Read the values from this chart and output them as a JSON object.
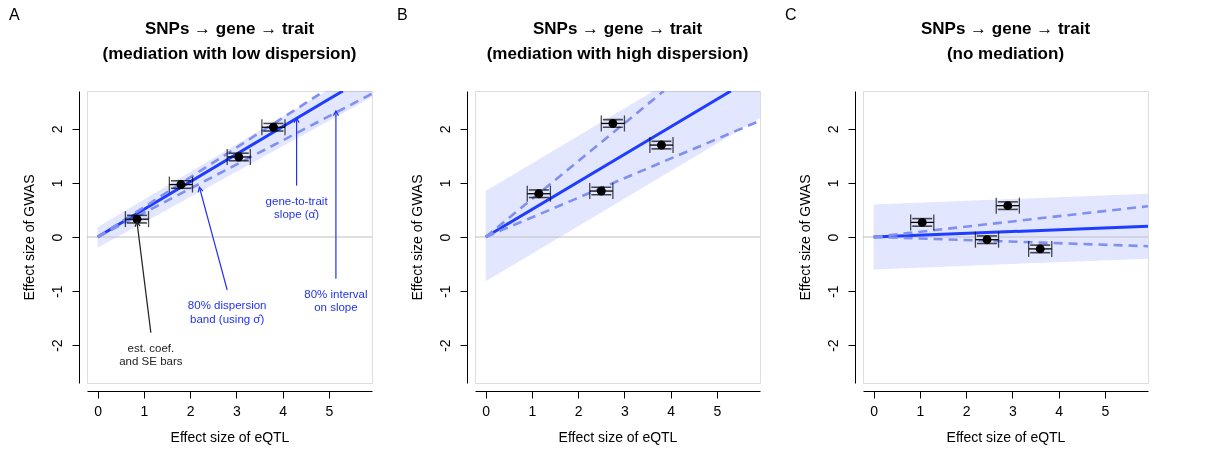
{
  "chart_data": [
    {
      "type": "scatter",
      "title": "SNPs → gene → trait\n(mediation with low dispersion)",
      "xlabel": "Effect size of eQTL",
      "ylabel": "Effect size of GWAS",
      "xlim": [
        -0.23,
        5.93
      ],
      "ylim": [
        -2.7,
        2.7
      ],
      "xticks": [
        0,
        1,
        2,
        3,
        4,
        5
      ],
      "yticks": [
        -2,
        -1,
        0,
        1,
        2
      ],
      "grid": false,
      "annotations": [
        "A",
        {
          "text": "est. coef.\nand SE bars",
          "x": 0.85,
          "y": 0.28
        },
        {
          "text": "80% dispersion\nband (using σ̂)",
          "x": 2.2,
          "y": 0.92
        },
        {
          "text": "gene-to-trait\nslope (α̂)",
          "x": 4.3,
          "y": 2.2
        },
        {
          "text": "80% interval\non slope",
          "x": 5.15,
          "y": 2.33
        }
      ],
      "ref_lines": [
        {
          "axis": "y",
          "value": 0,
          "color": "#c0c0c0"
        }
      ],
      "series": [
        {
          "type": "line",
          "color": "#1f3dff",
          "line_style": "solid",
          "x": [
            0,
            4.94,
            5.3,
            5.93
          ],
          "values": [
            0,
            2.52,
            2.7,
            null
          ],
          "lower": [
            -0.2,
            2.12,
            2.29,
            2.59
          ],
          "upper": [
            0.18,
            2.7,
            2.7,
            2.7
          ]
        },
        {
          "type": "line",
          "color": "#8090f0",
          "line_style": "dashed",
          "x": [
            0,
            4.9
          ],
          "values": [
            0,
            2.7
          ]
        },
        {
          "type": "line",
          "color": "#8090f0",
          "line_style": "dashed",
          "x": [
            0,
            5.93
          ],
          "values": [
            0,
            2.65
          ]
        },
        {
          "type": "scatter",
          "color": "#000000",
          "marker": "circle",
          "x": [
            0.85,
            1.8,
            3.05,
            3.8
          ],
          "values": [
            0.33,
            0.97,
            1.48,
            2.03
          ],
          "errors": [
            0.07,
            0.07,
            0.07,
            0.07
          ],
          "xerrors": [
            0.25,
            0.25,
            0.25,
            0.25
          ]
        }
      ]
    },
    {
      "type": "scatter",
      "title": "SNPs → gene → trait\n(mediation with high dispersion)",
      "xlabel": "Effect size of eQTL",
      "ylabel": "Effect size of GWAS",
      "xlim": [
        -0.23,
        5.93
      ],
      "ylim": [
        -2.7,
        2.7
      ],
      "xticks": [
        0,
        1,
        2,
        3,
        4,
        5
      ],
      "yticks": [
        -2,
        -1,
        0,
        1,
        2
      ],
      "grid": false,
      "annotations": [
        "B"
      ],
      "ref_lines": [
        {
          "axis": "y",
          "value": 0,
          "color": "#c0c0c0"
        }
      ],
      "series": [
        {
          "type": "line",
          "color": "#1f3dff",
          "line_style": "solid",
          "x": [
            0,
            3.63,
            5.3,
            5.93
          ],
          "values": [
            0,
            1.85,
            2.7,
            null
          ],
          "lower": [
            -0.82,
            1.03,
            1.88,
            2.2
          ],
          "upper": [
            0.85,
            2.7,
            2.7,
            2.7
          ]
        },
        {
          "type": "line",
          "color": "#8090f0",
          "line_style": "dashed",
          "x": [
            0,
            3.85
          ],
          "values": [
            0,
            2.7
          ]
        },
        {
          "type": "line",
          "color": "#8090f0",
          "line_style": "dashed",
          "x": [
            0,
            5.93
          ],
          "values": [
            0,
            2.15
          ]
        },
        {
          "type": "scatter",
          "color": "#000000",
          "marker": "circle",
          "x": [
            1.15,
            2.75,
            2.5,
            3.8
          ],
          "values": [
            0.8,
            2.1,
            0.85,
            1.7
          ],
          "errors": [
            0.07,
            0.07,
            0.07,
            0.07
          ],
          "xerrors": [
            0.25,
            0.25,
            0.25,
            0.25
          ]
        }
      ]
    },
    {
      "type": "scatter",
      "title": "SNPs → gene → trait\n(no mediation)",
      "xlabel": "Effect size of eQTL",
      "ylabel": "Effect size of GWAS",
      "xlim": [
        -0.23,
        5.93
      ],
      "ylim": [
        -2.7,
        2.7
      ],
      "xticks": [
        0,
        1,
        2,
        3,
        4,
        5
      ],
      "yticks": [
        -2,
        -1,
        0,
        1,
        2
      ],
      "grid": false,
      "annotations": [
        "C"
      ],
      "ref_lines": [
        {
          "axis": "y",
          "value": 0,
          "color": "#c0c0c0"
        }
      ],
      "series": [
        {
          "type": "line",
          "color": "#1f3dff",
          "line_style": "solid",
          "x": [
            0,
            5.93
          ],
          "values": [
            0,
            0.2
          ],
          "lower": [
            -0.6,
            -0.4
          ],
          "upper": [
            0.6,
            0.8
          ]
        },
        {
          "type": "line",
          "color": "#8090f0",
          "line_style": "dashed",
          "x": [
            0,
            5.93
          ],
          "values": [
            0,
            0.57
          ]
        },
        {
          "type": "line",
          "color": "#8090f0",
          "line_style": "dashed",
          "x": [
            0,
            5.93
          ],
          "values": [
            0,
            -0.17
          ]
        },
        {
          "type": "scatter",
          "color": "#000000",
          "marker": "circle",
          "x": [
            1.05,
            2.45,
            2.9,
            3.6
          ],
          "values": [
            0.27,
            -0.05,
            0.58,
            -0.22
          ],
          "errors": [
            0.07,
            0.07,
            0.07,
            0.07
          ],
          "xerrors": [
            0.25,
            0.25,
            0.25,
            0.25
          ]
        }
      ]
    }
  ]
}
